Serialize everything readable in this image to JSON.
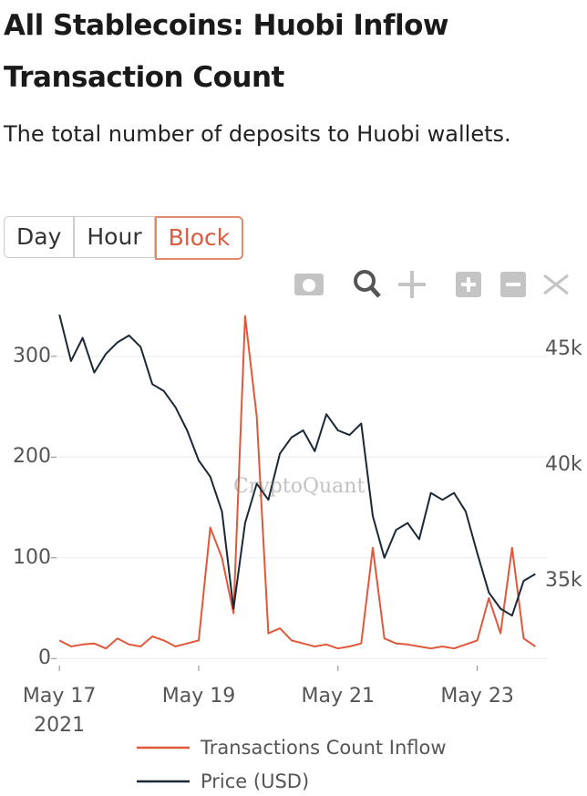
{
  "header": {
    "title": "All Stablecoins: Huobi Inflow Transaction Count",
    "subtitle": "The total number of deposits to Huobi wallets."
  },
  "buttons": [
    "Day",
    "Hour",
    "Block"
  ],
  "active_button": 2,
  "chart_data": {
    "type": "line",
    "watermark": "CryptoQuant",
    "x": [
      "2021-05-17T00:00",
      "2021-05-17T04:00",
      "2021-05-17T08:00",
      "2021-05-17T12:00",
      "2021-05-17T16:00",
      "2021-05-17T20:00",
      "2021-05-18T00:00",
      "2021-05-18T04:00",
      "2021-05-18T08:00",
      "2021-05-18T12:00",
      "2021-05-18T16:00",
      "2021-05-18T20:00",
      "2021-05-19T00:00",
      "2021-05-19T04:00",
      "2021-05-19T08:00",
      "2021-05-19T12:00",
      "2021-05-19T16:00",
      "2021-05-19T20:00",
      "2021-05-20T00:00",
      "2021-05-20T04:00",
      "2021-05-20T08:00",
      "2021-05-20T12:00",
      "2021-05-20T16:00",
      "2021-05-20T20:00",
      "2021-05-21T00:00",
      "2021-05-21T04:00",
      "2021-05-21T08:00",
      "2021-05-21T12:00",
      "2021-05-21T16:00",
      "2021-05-21T20:00",
      "2021-05-22T00:00",
      "2021-05-22T04:00",
      "2021-05-22T08:00",
      "2021-05-22T12:00",
      "2021-05-22T16:00",
      "2021-05-22T20:00",
      "2021-05-23T00:00",
      "2021-05-23T04:00",
      "2021-05-23T08:00",
      "2021-05-23T12:00",
      "2021-05-23T16:00",
      "2021-05-23T20:00"
    ],
    "series": [
      {
        "name": "Transactions Count Inflow",
        "color": "#e0583b",
        "values": [
          18,
          12,
          14,
          15,
          10,
          20,
          14,
          12,
          22,
          18,
          12,
          15,
          18,
          130,
          100,
          45,
          340,
          240,
          25,
          30,
          18,
          15,
          12,
          14,
          10,
          12,
          15,
          110,
          20,
          15,
          14,
          12,
          10,
          12,
          10,
          14,
          18,
          60,
          25,
          110,
          20,
          12
        ]
      },
      {
        "name": "Price (USD)",
        "color": "#1b2836",
        "axis": "y2",
        "values": [
          46500,
          44500,
          45500,
          44000,
          44800,
          45300,
          45600,
          45100,
          43500,
          43200,
          42500,
          41500,
          40200,
          39500,
          38000,
          33800,
          37500,
          39200,
          38500,
          40500,
          41200,
          41500,
          40600,
          42200,
          41500,
          41300,
          41800,
          37800,
          36000,
          37200,
          37500,
          36800,
          38800,
          38500,
          38800,
          38000,
          36200,
          34500,
          33800,
          33500,
          35000,
          35300
        ]
      }
    ],
    "xlim": [
      "2021-05-16T23:00",
      "2021-05-24T00:00"
    ],
    "xticks": [
      {
        "value": "2021-05-17",
        "label": "May 17\n2021"
      },
      {
        "value": "2021-05-19",
        "label": "May 19"
      },
      {
        "value": "2021-05-21",
        "label": "May 21"
      },
      {
        "value": "2021-05-23",
        "label": "May 23"
      }
    ],
    "ylim": [
      -7,
      346
    ],
    "yticks": [
      0,
      100,
      200,
      300
    ],
    "y2lim": [
      31340,
      46700
    ],
    "y2ticks": [
      {
        "value": 35000,
        "label": "35k"
      },
      {
        "value": 40000,
        "label": "40k"
      },
      {
        "value": 45000,
        "label": "45k"
      }
    ],
    "grid": true
  }
}
